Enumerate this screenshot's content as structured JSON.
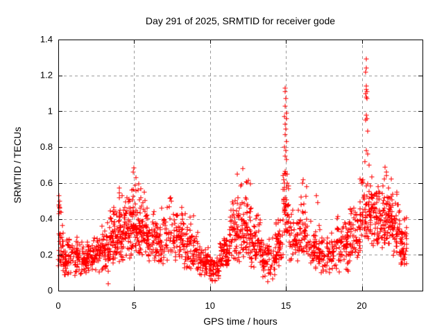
{
  "chart_data": {
    "type": "scatter",
    "title": "Day 291 of 2025, SRMTID for receiver gode",
    "xlabel": "GPS time / hours",
    "ylabel": "SRMTID / TECUs",
    "series_name": "SRMTID",
    "xlim": [
      0,
      24
    ],
    "ylim": [
      0,
      1.4
    ],
    "xtick_values": [
      0,
      5,
      10,
      15,
      20
    ],
    "xtick_labels": [
      "0",
      "5",
      "10",
      "15",
      "20"
    ],
    "ytick_values": [
      0,
      0.2,
      0.4,
      0.6,
      0.8,
      1,
      1.2,
      1.4
    ],
    "ytick_labels": [
      "0",
      "0.2",
      "0.4",
      "0.6",
      "0.8",
      "1",
      "1.2",
      "1.4"
    ],
    "grid": {
      "show": true,
      "color": "#9b9b9b",
      "dash": "4 4",
      "x_values": [
        5,
        10,
        15,
        20
      ],
      "y_values": [
        0.2,
        0.4,
        0.6,
        0.8,
        1,
        1.2
      ]
    },
    "axis_color": "#000000",
    "marker": {
      "glyph": "+",
      "size": 7,
      "color": "#ff0000"
    },
    "legend": "none",
    "point_seed": 20251018,
    "density_segments": [
      [
        0.0,
        0.35,
        0.1,
        0.38,
        30,
        1.2
      ],
      [
        0.0,
        0.25,
        0.4,
        0.53,
        6,
        1.0
      ],
      [
        0.3,
        1.3,
        0.08,
        0.33,
        90,
        1.2
      ],
      [
        1.3,
        2.1,
        0.08,
        0.28,
        70,
        1.1
      ],
      [
        2.1,
        2.8,
        0.1,
        0.32,
        60,
        1.2
      ],
      [
        2.8,
        3.4,
        0.1,
        0.42,
        55,
        1.3
      ],
      [
        3.4,
        4.0,
        0.14,
        0.55,
        65,
        1.4
      ],
      [
        4.0,
        4.6,
        0.15,
        0.62,
        70,
        1.4
      ],
      [
        4.6,
        5.3,
        0.18,
        0.69,
        80,
        1.5
      ],
      [
        5.3,
        5.9,
        0.18,
        0.6,
        70,
        1.4
      ],
      [
        5.9,
        6.6,
        0.14,
        0.45,
        60,
        1.2
      ],
      [
        6.6,
        7.5,
        0.14,
        0.55,
        70,
        1.4
      ],
      [
        7.5,
        8.3,
        0.15,
        0.5,
        65,
        1.3
      ],
      [
        8.3,
        9.2,
        0.12,
        0.45,
        70,
        1.3
      ],
      [
        9.2,
        9.9,
        0.08,
        0.3,
        60,
        1.2
      ],
      [
        9.9,
        10.6,
        0.05,
        0.22,
        60,
        1.1
      ],
      [
        10.6,
        11.3,
        0.1,
        0.35,
        60,
        1.2
      ],
      [
        11.3,
        12.0,
        0.15,
        0.58,
        70,
        1.4
      ],
      [
        12.0,
        12.7,
        0.18,
        0.68,
        75,
        1.5
      ],
      [
        12.7,
        13.4,
        0.12,
        0.45,
        60,
        1.3
      ],
      [
        13.4,
        14.3,
        0.06,
        0.32,
        70,
        1.2
      ],
      [
        14.3,
        14.8,
        0.12,
        0.42,
        50,
        1.3
      ],
      [
        14.8,
        15.2,
        0.3,
        0.72,
        45,
        1.4
      ],
      [
        15.2,
        15.9,
        0.15,
        0.5,
        50,
        1.3
      ],
      [
        15.9,
        16.4,
        0.18,
        0.62,
        45,
        1.4
      ],
      [
        16.4,
        17.3,
        0.12,
        0.4,
        60,
        1.2
      ],
      [
        17.3,
        18.3,
        0.08,
        0.35,
        65,
        1.2
      ],
      [
        18.3,
        19.2,
        0.1,
        0.45,
        70,
        1.3
      ],
      [
        19.2,
        19.9,
        0.18,
        0.55,
        60,
        1.3
      ],
      [
        19.9,
        20.45,
        0.28,
        0.7,
        50,
        1.4
      ],
      [
        20.45,
        21.2,
        0.25,
        0.65,
        85,
        1.3
      ],
      [
        21.2,
        22.0,
        0.22,
        0.68,
        85,
        1.3
      ],
      [
        22.0,
        22.55,
        0.18,
        0.6,
        55,
        1.3
      ],
      [
        22.55,
        23.0,
        0.07,
        0.45,
        45,
        1.2
      ]
    ],
    "peak_points": [
      [
        14.93,
        1.13
      ],
      [
        14.97,
        1.11
      ],
      [
        15.0,
        1.07
      ],
      [
        14.95,
        1.03
      ],
      [
        15.03,
        0.99
      ],
      [
        14.9,
        0.97
      ],
      [
        15.05,
        0.96
      ],
      [
        14.97,
        0.93
      ],
      [
        15.0,
        0.9
      ],
      [
        14.93,
        0.87
      ],
      [
        15.06,
        0.83
      ],
      [
        14.88,
        0.8
      ],
      [
        15.0,
        0.78
      ],
      [
        14.96,
        0.75
      ],
      [
        15.04,
        0.73
      ],
      [
        15.1,
        0.65
      ],
      [
        14.85,
        0.62
      ],
      [
        20.28,
        1.29
      ],
      [
        20.3,
        1.24
      ],
      [
        20.27,
        1.22
      ],
      [
        20.31,
        1.14
      ],
      [
        20.28,
        1.12
      ],
      [
        20.33,
        1.11
      ],
      [
        20.26,
        1.1
      ],
      [
        20.3,
        1.08
      ],
      [
        20.35,
        1.07
      ],
      [
        20.29,
        0.98
      ],
      [
        20.33,
        0.96
      ],
      [
        20.26,
        0.95
      ],
      [
        20.4,
        0.89
      ],
      [
        20.31,
        0.78
      ],
      [
        20.37,
        0.76
      ],
      [
        20.22,
        0.72
      ],
      [
        20.48,
        0.7
      ],
      [
        0.05,
        0.53
      ],
      [
        0.1,
        0.5
      ],
      [
        0.07,
        0.44
      ],
      [
        5.0,
        0.685
      ],
      [
        4.95,
        0.66
      ],
      [
        12.15,
        0.68
      ],
      [
        11.8,
        0.65
      ],
      [
        16.1,
        0.6
      ],
      [
        16.15,
        0.62
      ],
      [
        17.0,
        0.53
      ],
      [
        17.1,
        0.49
      ],
      [
        21.55,
        0.69
      ],
      [
        21.6,
        0.66
      ],
      [
        3.3,
        0.04
      ],
      [
        13.8,
        0.05
      ],
      [
        10.15,
        0.055
      ]
    ]
  }
}
